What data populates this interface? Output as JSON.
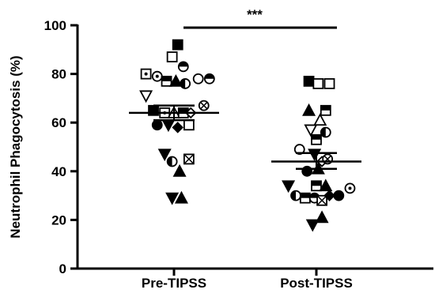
{
  "chart_data": {
    "type": "scatter",
    "ylabel": "Neutrophil Phagocytosis (%)",
    "ylim": [
      0,
      100
    ],
    "yticks": [
      0,
      20,
      40,
      60,
      80,
      100
    ],
    "categories": [
      "Pre-TIPSS",
      "Post-TIPSS"
    ],
    "significance": "***",
    "groups": [
      {
        "category": "Pre-TIPSS",
        "mean": 64,
        "sem": [
          61,
          67
        ],
        "points": [
          {
            "o": 0.04,
            "y": 92,
            "m": "sq-fill"
          },
          {
            "o": -0.02,
            "y": 87,
            "m": "sq-open"
          },
          {
            "o": 0.1,
            "y": 83,
            "m": "circ-half-h"
          },
          {
            "o": -0.3,
            "y": 80,
            "m": "sq-dot"
          },
          {
            "o": -0.18,
            "y": 79,
            "m": "circ-dot"
          },
          {
            "o": -0.08,
            "y": 77,
            "m": "sq-half"
          },
          {
            "o": 0.02,
            "y": 77,
            "m": "tri-fill"
          },
          {
            "o": 0.12,
            "y": 76,
            "m": "circ-half-v"
          },
          {
            "o": 0.26,
            "y": 78,
            "m": "circ-open"
          },
          {
            "o": 0.38,
            "y": 78,
            "m": "circ-half-h"
          },
          {
            "o": -0.3,
            "y": 71,
            "m": "tri-down-open"
          },
          {
            "o": 0.32,
            "y": 67,
            "m": "circ-x"
          },
          {
            "o": -0.22,
            "y": 65,
            "m": "sq-fill"
          },
          {
            "o": -0.1,
            "y": 64,
            "m": "sq-dot"
          },
          {
            "o": 0.0,
            "y": 64,
            "m": "tri-open"
          },
          {
            "o": 0.1,
            "y": 64,
            "m": "sq-half"
          },
          {
            "o": 0.18,
            "y": 64,
            "m": "diamond-open"
          },
          {
            "o": -0.18,
            "y": 59,
            "m": "circ-fill"
          },
          {
            "o": -0.06,
            "y": 59,
            "m": "tri-down-fill"
          },
          {
            "o": 0.04,
            "y": 58,
            "m": "diamond-fill"
          },
          {
            "o": 0.16,
            "y": 59,
            "m": "sq-open"
          },
          {
            "o": -0.1,
            "y": 47,
            "m": "tri-down-fill"
          },
          {
            "o": -0.02,
            "y": 44,
            "m": "circ-half-v"
          },
          {
            "o": 0.16,
            "y": 45,
            "m": "sq-x"
          },
          {
            "o": 0.06,
            "y": 40,
            "m": "tri-fill"
          },
          {
            "o": -0.02,
            "y": 29,
            "m": "tri-down-fill"
          },
          {
            "o": 0.08,
            "y": 29,
            "m": "tri-fill"
          }
        ]
      },
      {
        "category": "Post-TIPSS",
        "mean": 44,
        "sem": [
          41,
          47.5
        ],
        "points": [
          {
            "o": -0.08,
            "y": 77,
            "m": "sq-fill"
          },
          {
            "o": 0.02,
            "y": 76,
            "m": "sq-open"
          },
          {
            "o": 0.14,
            "y": 76,
            "m": "sq-open"
          },
          {
            "o": -0.08,
            "y": 65,
            "m": "tri-fill"
          },
          {
            "o": 0.1,
            "y": 65,
            "m": "sq-half"
          },
          {
            "o": 0.04,
            "y": 61,
            "m": "tri-open"
          },
          {
            "o": -0.06,
            "y": 57,
            "m": "tri-down-open"
          },
          {
            "o": 0.1,
            "y": 56,
            "m": "circ-half-v"
          },
          {
            "o": 0.0,
            "y": 53,
            "m": "sq-half"
          },
          {
            "o": -0.18,
            "y": 49,
            "m": "circ-open"
          },
          {
            "o": -0.02,
            "y": 47,
            "m": "tri-down-fill"
          },
          {
            "o": 0.06,
            "y": 44,
            "m": "diamond-open"
          },
          {
            "o": 0.12,
            "y": 45,
            "m": "circ-x"
          },
          {
            "o": -0.1,
            "y": 40,
            "m": "circ-fill"
          },
          {
            "o": 0.02,
            "y": 41,
            "m": "tri-fill"
          },
          {
            "o": -0.3,
            "y": 34,
            "m": "tri-down-fill"
          },
          {
            "o": 0.0,
            "y": 34,
            "m": "sq-half"
          },
          {
            "o": 0.1,
            "y": 34,
            "m": "tri-fill"
          },
          {
            "o": 0.36,
            "y": 33,
            "m": "circ-dot"
          },
          {
            "o": -0.22,
            "y": 30,
            "m": "circ-half-v"
          },
          {
            "o": -0.12,
            "y": 29,
            "m": "sq-half"
          },
          {
            "o": -0.02,
            "y": 29,
            "m": "circ-half-h"
          },
          {
            "o": 0.06,
            "y": 28,
            "m": "sq-x"
          },
          {
            "o": 0.14,
            "y": 30,
            "m": "diamond-fill"
          },
          {
            "o": 0.24,
            "y": 30,
            "m": "circ-fill"
          },
          {
            "o": -0.04,
            "y": 18,
            "m": "tri-down-fill"
          },
          {
            "o": 0.06,
            "y": 21,
            "m": "tri-fill"
          }
        ]
      }
    ]
  }
}
